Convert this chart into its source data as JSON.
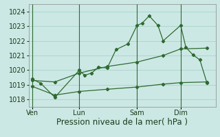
{
  "bg_color": "#cce8e4",
  "grid_color": "#aed4ce",
  "line_color": "#2d6a30",
  "xlabel": "Pression niveau de la mer( hPa )",
  "xlabel_fontsize": 8.5,
  "tick_fontsize": 7,
  "ylim": [
    1017.5,
    1024.5
  ],
  "yticks": [
    1018,
    1019,
    1020,
    1021,
    1022,
    1023,
    1024
  ],
  "xtick_labels": [
    "Ven",
    "Lun",
    "Sam",
    "Dim"
  ],
  "xtick_pos": [
    0.0,
    0.27,
    0.6,
    0.85
  ],
  "vline_x": [
    0.0,
    0.27,
    0.6,
    0.85
  ],
  "series1_x": [
    0.0,
    0.05,
    0.13,
    0.27,
    0.3,
    0.34,
    0.38,
    0.43,
    0.48,
    0.55,
    0.6,
    0.63,
    0.67,
    0.72,
    0.75,
    0.85,
    0.88,
    0.92,
    0.96,
    1.0
  ],
  "series1_y": [
    1019.4,
    1019.1,
    1018.15,
    1020.0,
    1019.65,
    1019.8,
    1020.2,
    1020.15,
    1021.4,
    1021.8,
    1023.05,
    1023.2,
    1023.7,
    1023.05,
    1022.0,
    1023.05,
    1021.55,
    1021.05,
    1020.7,
    1019.15
  ],
  "series2_x": [
    0.0,
    0.13,
    0.27,
    0.43,
    0.6,
    0.75,
    0.85,
    1.0
  ],
  "series2_y": [
    1019.3,
    1019.2,
    1019.8,
    1020.25,
    1020.55,
    1021.0,
    1021.45,
    1021.5
  ],
  "series3_x": [
    0.0,
    0.13,
    0.27,
    0.43,
    0.6,
    0.75,
    0.85,
    1.0
  ],
  "series3_y": [
    1018.9,
    1018.3,
    1018.55,
    1018.7,
    1018.85,
    1019.05,
    1019.15,
    1019.2
  ]
}
